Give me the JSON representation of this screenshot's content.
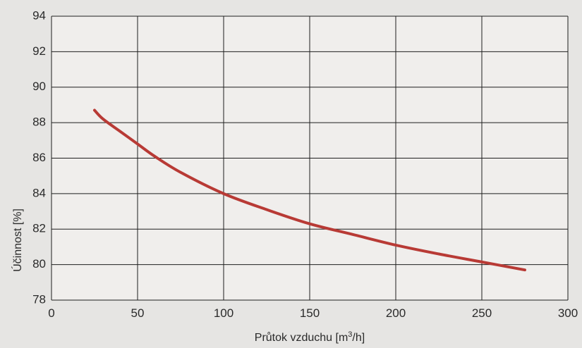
{
  "chart_data": {
    "type": "line",
    "xlabel": "Průtok vzduchu [m",
    "xlabel_sup": "3",
    "xlabel_suffix": "/h]",
    "ylabel": "Účinnost [%]",
    "xlim": [
      0,
      300
    ],
    "ylim": [
      78,
      94
    ],
    "xticks": [
      0,
      50,
      100,
      150,
      200,
      250,
      300
    ],
    "yticks": [
      78,
      80,
      82,
      84,
      86,
      88,
      90,
      92,
      94
    ],
    "grid": true,
    "series": [
      {
        "color": "#b83a35",
        "x": [
          25,
          30,
          40,
          50,
          60,
          75,
          100,
          125,
          150,
          175,
          200,
          225,
          250,
          275
        ],
        "y": [
          88.7,
          88.2,
          87.5,
          86.8,
          86.1,
          85.2,
          84.0,
          83.1,
          82.3,
          81.7,
          81.1,
          80.6,
          80.15,
          79.7
        ]
      }
    ]
  },
  "colors": {
    "background": "#e6e5e3",
    "plot_area": "#f0eeec",
    "grid": "#1e1e1e",
    "line": "#b83a35"
  }
}
